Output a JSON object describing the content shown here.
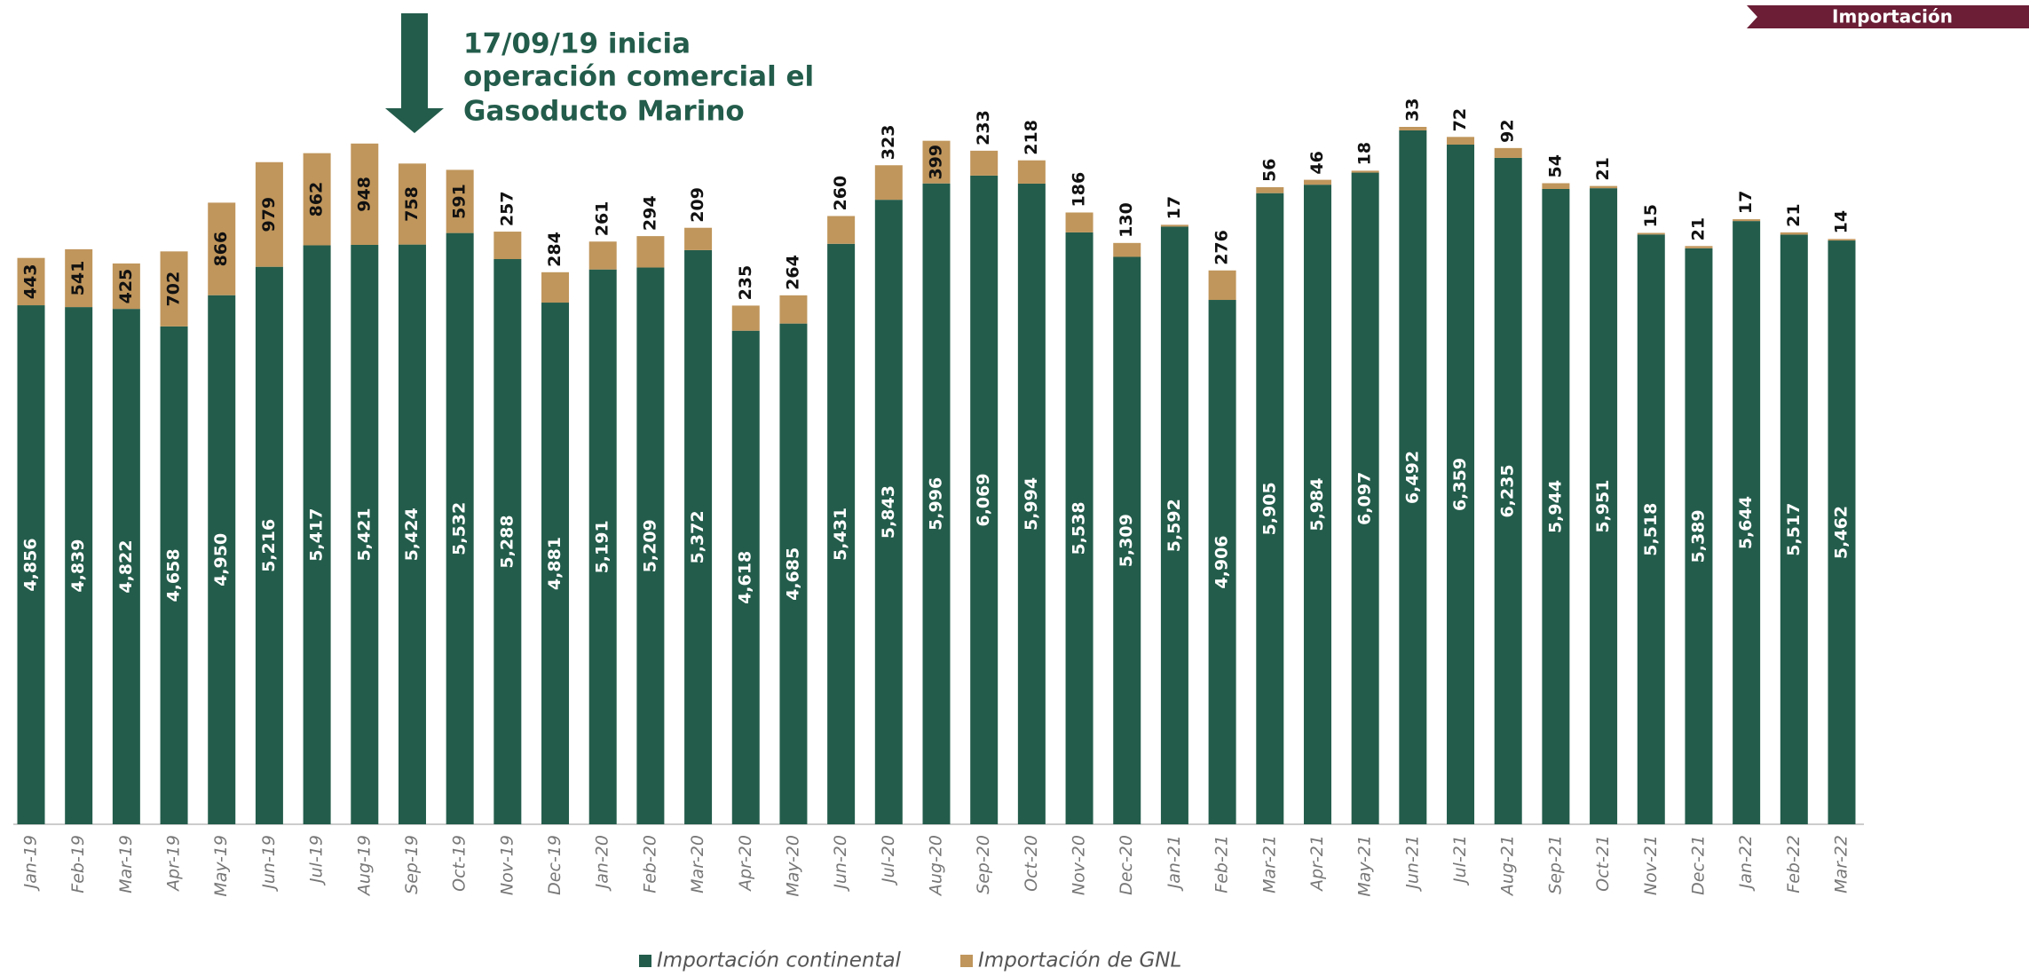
{
  "chart_data": {
    "type": "stacked_bar",
    "badge": "Importación",
    "annotation": [
      "17/09/19 inicia",
      "operación comercial el",
      "Gasoducto Marino"
    ],
    "categories": [
      "Jan-19",
      "Feb-19",
      "Mar-19",
      "Apr-19",
      "May-19",
      "Jun-19",
      "Jul-19",
      "Aug-19",
      "Sep-19",
      "Oct-19",
      "Nov-19",
      "Dec-19",
      "Jan-20",
      "Feb-20",
      "Mar-20",
      "Apr-20",
      "May-20",
      "Jun-20",
      "Jul-20",
      "Aug-20",
      "Sep-20",
      "Oct-20",
      "Nov-20",
      "Dec-20",
      "Jan-21",
      "Feb-21",
      "Mar-21",
      "Apr-21",
      "May-21",
      "Jun-21",
      "Jul-21",
      "Aug-21",
      "Sep-21",
      "Oct-21",
      "Nov-21",
      "Dec-21",
      "Jan-22",
      "Feb-22",
      "Mar-22"
    ],
    "series": [
      {
        "name": "Importación continental",
        "color": "#235c4b",
        "values": [
          4856,
          4839,
          4822,
          4658,
          4950,
          5216,
          5417,
          5421,
          5424,
          5532,
          5288,
          4881,
          5191,
          5209,
          5372,
          4618,
          4685,
          5431,
          5843,
          5996,
          6069,
          5994,
          5538,
          5309,
          5592,
          4906,
          5905,
          5984,
          6097,
          6492,
          6359,
          6235,
          5944,
          5951,
          5518,
          5389,
          5644,
          5517,
          5462
        ],
        "value_labels": [
          "4,856",
          "4,839",
          "4,822",
          "4,658",
          "4,950",
          "5,216",
          "5,417",
          "5,421",
          "5,424",
          "5,532",
          "5,288",
          "4,881",
          "5,191",
          "5,209",
          "5,372",
          "4,618",
          "4,685",
          "5,431",
          "5,843",
          "5,996",
          "6,069",
          "5,994",
          "5,538",
          "5,309",
          "5,592",
          "4,906",
          "5,905",
          "5,984",
          "6,097",
          "6,492",
          "6,359",
          "6,235",
          "5,944",
          "5,951",
          "5,518",
          "5,389",
          "5,644",
          "5,517",
          "5,462"
        ]
      },
      {
        "name": "Importación de GNL",
        "color": "#c0965c",
        "values": [
          443,
          541,
          425,
          702,
          866,
          979,
          862,
          948,
          758,
          591,
          257,
          284,
          261,
          294,
          209,
          235,
          264,
          260,
          323,
          399,
          233,
          218,
          186,
          130,
          17,
          276,
          56,
          46,
          18,
          33,
          72,
          92,
          54,
          21,
          15,
          21,
          17,
          21,
          14
        ]
      }
    ]
  }
}
